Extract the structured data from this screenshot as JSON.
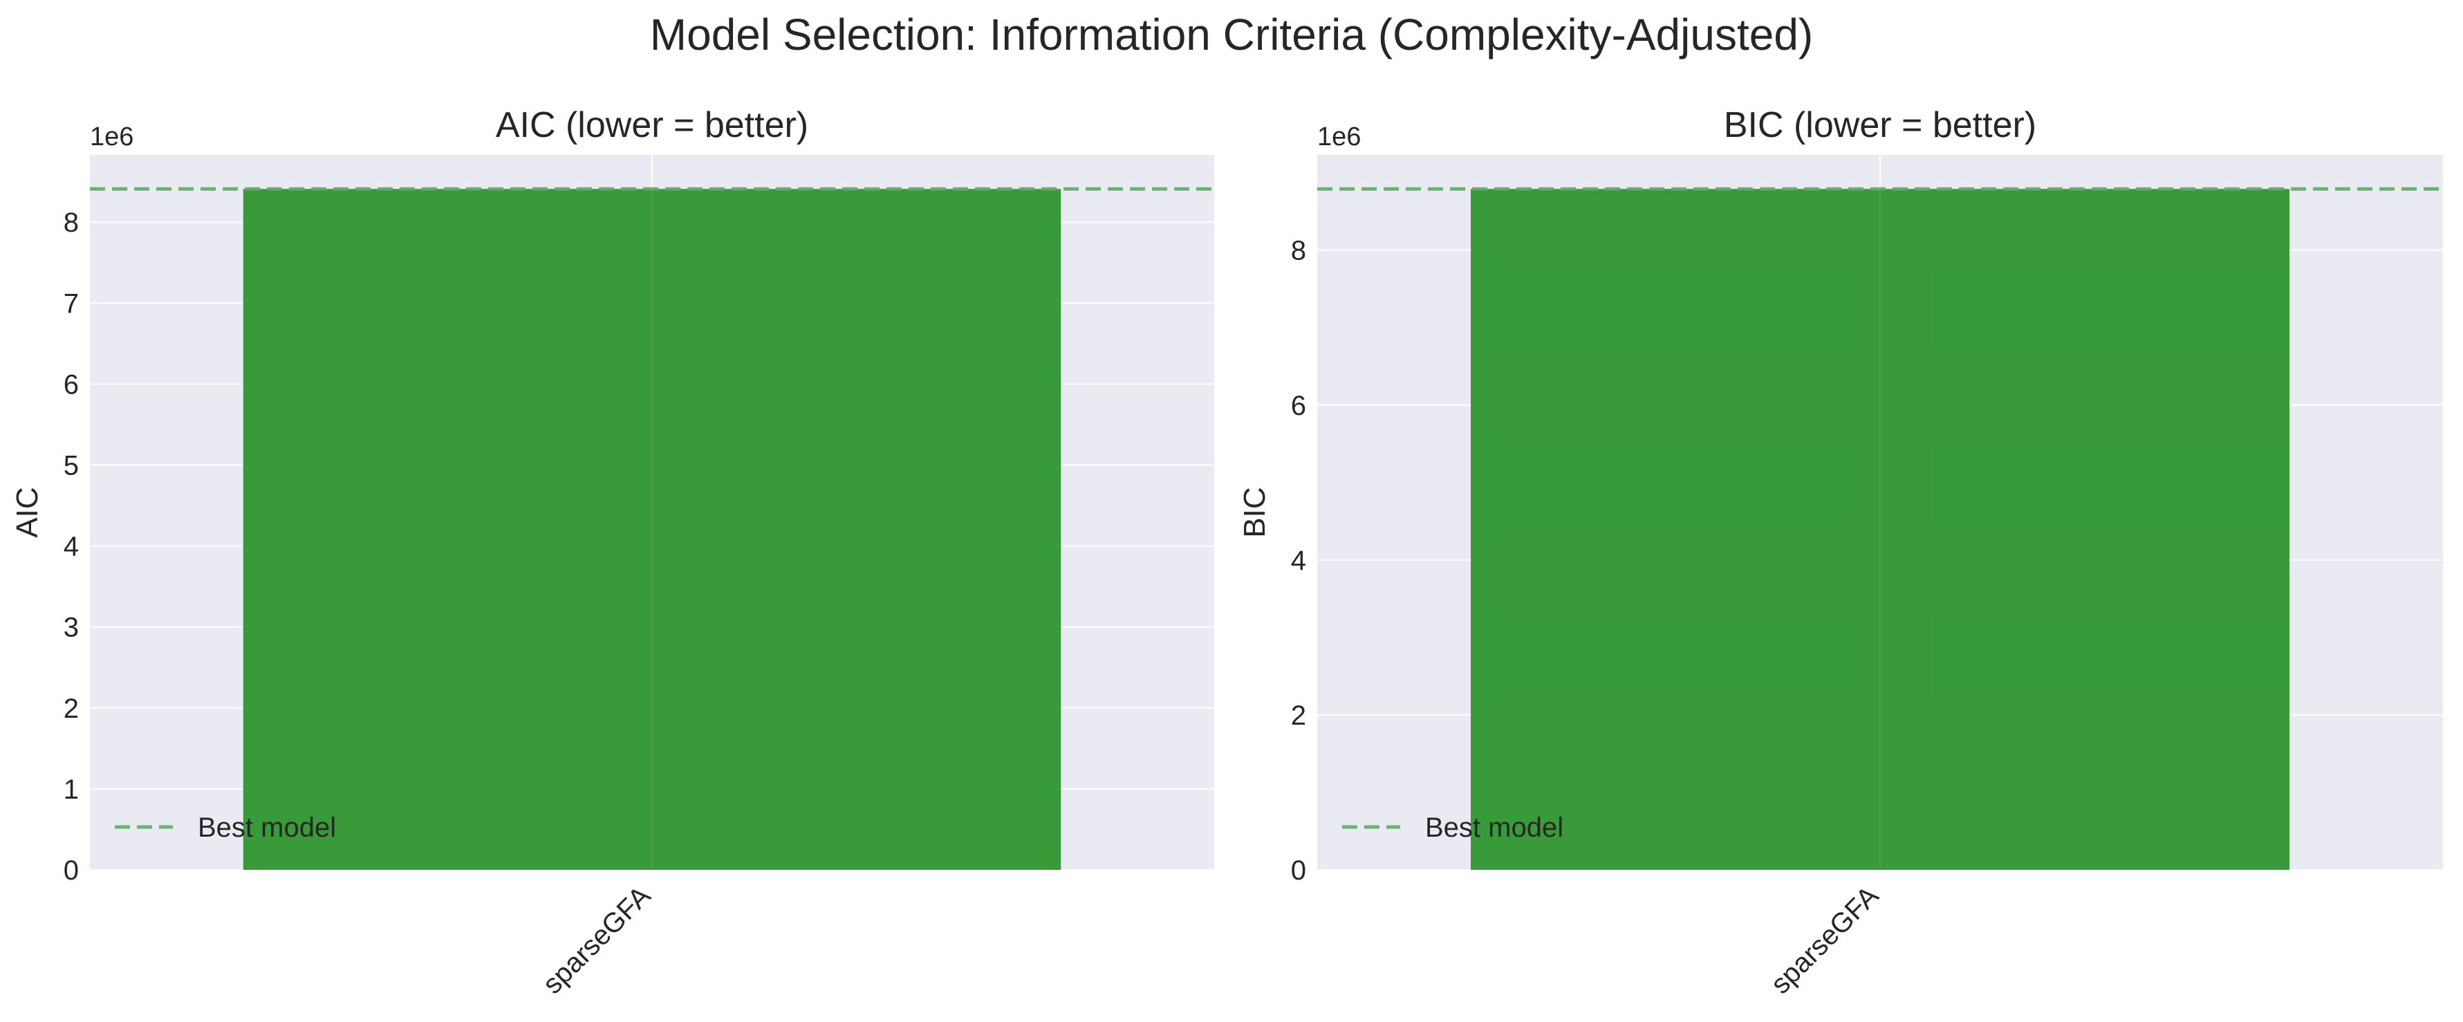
{
  "figure": {
    "suptitle": "Model Selection: Information Criteria (Complexity-Adjusted)"
  },
  "colors": {
    "background": "#ffffff",
    "plot_background": "#eaeaf2",
    "grid": "#ffffff",
    "bar": "#2e962e",
    "best_line": "#5aae61",
    "text": "#262626"
  },
  "chart_data": [
    {
      "type": "bar",
      "title": "AIC (lower = better)",
      "xlabel": "",
      "ylabel": "AIC",
      "categories": [
        "sparseGFA"
      ],
      "values": [
        8410000
      ],
      "ylim": [
        0,
        8830500
      ],
      "yticks": [
        0,
        1000000,
        2000000,
        3000000,
        4000000,
        5000000,
        6000000,
        7000000,
        8000000
      ],
      "ytick_labels": [
        "0",
        "1",
        "2",
        "3",
        "4",
        "5",
        "6",
        "7",
        "8"
      ],
      "offset_label": "1e6",
      "reference_line": {
        "value": 8410000,
        "label": "Best model",
        "style": "dashed"
      },
      "legend": {
        "location": "lower-left",
        "entries": [
          "Best model"
        ]
      },
      "grid": true
    },
    {
      "type": "bar",
      "title": "BIC (lower = better)",
      "xlabel": "",
      "ylabel": "BIC",
      "categories": [
        "sparseGFA"
      ],
      "values": [
        8790000
      ],
      "ylim": [
        0,
        9229500
      ],
      "yticks": [
        0,
        2000000,
        4000000,
        6000000,
        8000000
      ],
      "ytick_labels": [
        "0",
        "2",
        "4",
        "6",
        "8"
      ],
      "offset_label": "1e6",
      "reference_line": {
        "value": 8790000,
        "label": "Best model",
        "style": "dashed"
      },
      "legend": {
        "location": "lower-left",
        "entries": [
          "Best model"
        ]
      },
      "grid": true
    }
  ]
}
